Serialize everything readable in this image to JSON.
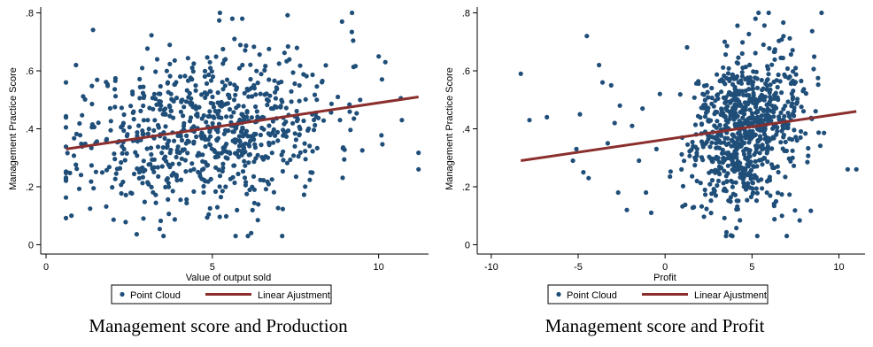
{
  "captions": [
    "Management score and Production",
    "Management score and Profit"
  ],
  "colors": {
    "points": "#1f4e79",
    "fit_line": "#8b2e2e",
    "axis": "#000000",
    "legend_border": "#000000"
  },
  "chart_data": [
    {
      "type": "scatter",
      "title": "",
      "xlabel": "Value of output sold",
      "ylabel": "Management Practice Score",
      "xlim": [
        0,
        11.5
      ],
      "ylim": [
        -0.02,
        0.82
      ],
      "xticks": [
        0,
        5,
        10
      ],
      "yticks": [
        0,
        0.2,
        0.4,
        0.6,
        0.8
      ],
      "ytick_labels": [
        "0",
        ".2",
        ".4",
        ".6",
        ".8"
      ],
      "grid": false,
      "legend": {
        "placement": "bottom-center",
        "entries": [
          "Point Cloud",
          "Linear Ajustment"
        ]
      },
      "series": [
        {
          "name": "Point Cloud",
          "kind": "scatter",
          "cloud": {
            "n": 780,
            "x_mean": 4.8,
            "x_sd": 1.9,
            "x_min": 0.6,
            "x_max": 11.2,
            "y_mean": 0.4,
            "y_sd": 0.135,
            "y_min": 0.03,
            "y_max": 0.8,
            "seed": 11
          },
          "points": [
            {
              "x": 9.2,
              "y": 0.8
            },
            {
              "x": 5.6,
              "y": 0.78
            },
            {
              "x": 5.9,
              "y": 0.78
            },
            {
              "x": 8.9,
              "y": 0.77
            },
            {
              "x": 5.7,
              "y": 0.03
            },
            {
              "x": 7.1,
              "y": 0.03
            },
            {
              "x": 0.6,
              "y": 0.56
            },
            {
              "x": 0.9,
              "y": 0.62
            },
            {
              "x": 11.2,
              "y": 0.26
            },
            {
              "x": 10.7,
              "y": 0.43
            },
            {
              "x": 10.0,
              "y": 0.65
            },
            {
              "x": 10.2,
              "y": 0.63
            }
          ]
        },
        {
          "name": "Linear Ajustment",
          "kind": "line",
          "x": [
            0.6,
            11.2
          ],
          "y": [
            0.33,
            0.51
          ]
        }
      ]
    },
    {
      "type": "scatter",
      "title": "",
      "xlabel": "Profit",
      "ylabel": "Management Practice Score",
      "xlim": [
        -10.5,
        11.5
      ],
      "ylim": [
        -0.02,
        0.82
      ],
      "xticks": [
        -10,
        -5,
        0,
        5,
        10
      ],
      "yticks": [
        0,
        0.2,
        0.4,
        0.6,
        0.8
      ],
      "ytick_labels": [
        "0",
        ".2",
        ".4",
        ".6",
        ".8"
      ],
      "grid": false,
      "legend": {
        "placement": "bottom-center",
        "entries": [
          "Point Cloud",
          "Linear Ajustment"
        ]
      },
      "series": [
        {
          "name": "Point Cloud",
          "kind": "scatter",
          "cloud": {
            "n": 800,
            "x_mean": 4.6,
            "x_sd": 1.6,
            "x_min": 0.1,
            "x_max": 11.0,
            "y_mean": 0.4,
            "y_sd": 0.13,
            "y_min": 0.03,
            "y_max": 0.8,
            "seed": 29
          },
          "points": [
            {
              "x": -8.3,
              "y": 0.59
            },
            {
              "x": -7.8,
              "y": 0.43
            },
            {
              "x": -6.8,
              "y": 0.44
            },
            {
              "x": -4.5,
              "y": 0.72
            },
            {
              "x": -5.3,
              "y": 0.29
            },
            {
              "x": -4.7,
              "y": 0.25
            },
            {
              "x": -4.4,
              "y": 0.23
            },
            {
              "x": -3.6,
              "y": 0.56
            },
            {
              "x": -3.1,
              "y": 0.55
            },
            {
              "x": -3.8,
              "y": 0.62
            },
            {
              "x": -2.9,
              "y": 0.42
            },
            {
              "x": -2.7,
              "y": 0.18
            },
            {
              "x": -2.2,
              "y": 0.12
            },
            {
              "x": -1.5,
              "y": 0.29
            },
            {
              "x": -1.1,
              "y": 0.18
            },
            {
              "x": -0.8,
              "y": 0.11
            },
            {
              "x": -0.5,
              "y": 0.33
            },
            {
              "x": -4.9,
              "y": 0.45
            },
            {
              "x": -3.3,
              "y": 0.35
            },
            {
              "x": -1.9,
              "y": 0.41
            },
            {
              "x": -2.6,
              "y": 0.48
            },
            {
              "x": -0.3,
              "y": 0.52
            },
            {
              "x": -5.1,
              "y": 0.33
            },
            {
              "x": -1.3,
              "y": 0.47
            },
            {
              "x": 9.0,
              "y": 0.8
            },
            {
              "x": 5.2,
              "y": 0.78
            },
            {
              "x": 5.3,
              "y": 0.03
            },
            {
              "x": 7.0,
              "y": 0.03
            },
            {
              "x": 11.0,
              "y": 0.26
            },
            {
              "x": 10.5,
              "y": 0.26
            }
          ]
        },
        {
          "name": "Linear Ajustment",
          "kind": "line",
          "x": [
            -8.3,
            11.0
          ],
          "y": [
            0.29,
            0.46
          ]
        }
      ]
    }
  ]
}
